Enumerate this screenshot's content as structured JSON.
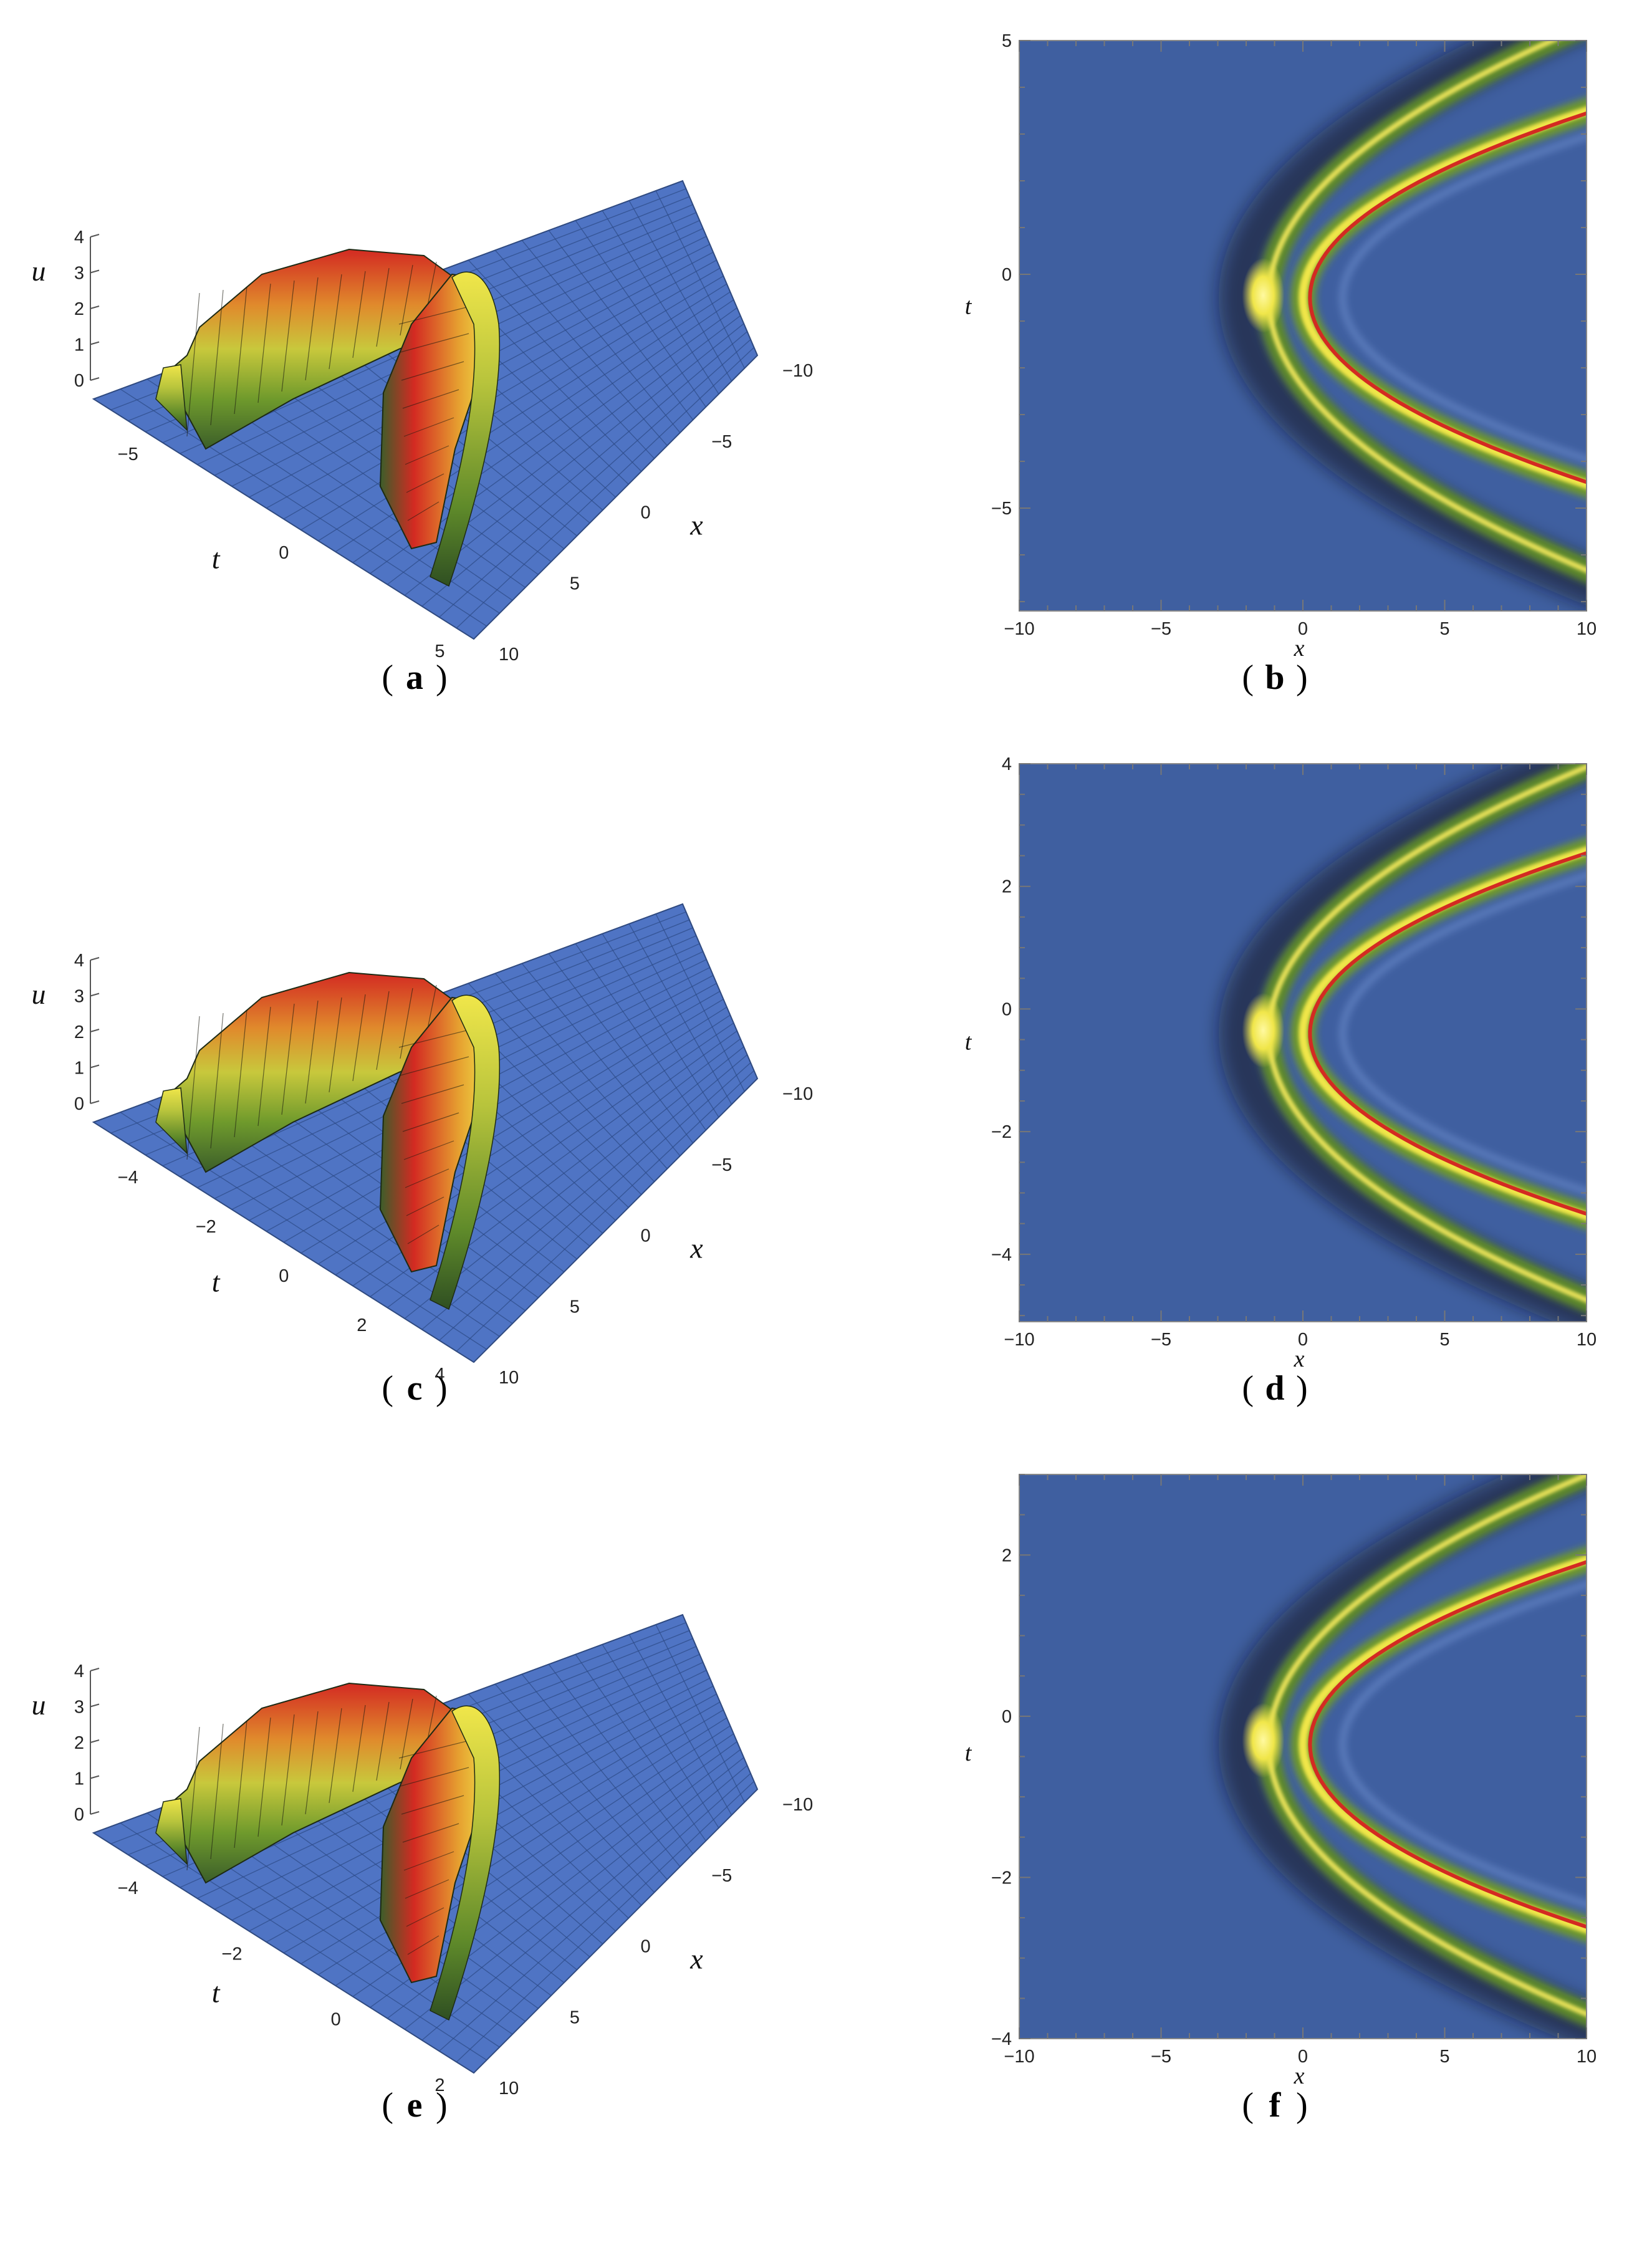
{
  "colors": {
    "background_blue": "#3f5fa0",
    "surface_blue": "#4f74c4",
    "surface_green": "#6f9a2c",
    "surface_yellow": "#f0e64a",
    "surface_red": "#d32a22",
    "frame": "#888888"
  },
  "chart_data": [
    {
      "panel": "a",
      "type": "surface3d",
      "zlabel": "u",
      "xlabel": "x",
      "ylabel": "t",
      "z_ticks": [
        "4",
        "3",
        "2",
        "1",
        "0"
      ],
      "x_ticks": [
        "−10",
        "−5",
        "0",
        "5",
        "10"
      ],
      "t_ticks": [
        "−5",
        "0",
        "5"
      ],
      "xlim": [
        -10,
        10
      ],
      "tlim": [
        -7,
        5
      ],
      "zlim": [
        0,
        4
      ]
    },
    {
      "panel": "b",
      "type": "density",
      "xlabel": "x",
      "ylabel": "t",
      "xlim": [
        -10,
        10
      ],
      "ylim": [
        -7.2,
        5
      ],
      "x_ticks": [
        -10,
        -5,
        0,
        5,
        10
      ],
      "y_ticks": [
        5,
        0,
        -5
      ],
      "x_tick_labels": [
        "−10",
        "−5",
        "0",
        "5",
        "10"
      ],
      "y_tick_labels": [
        "5",
        "0",
        "−5"
      ],
      "vertex_x": -1,
      "vertex_t": -0.5
    },
    {
      "panel": "c",
      "type": "surface3d",
      "zlabel": "u",
      "xlabel": "x",
      "ylabel": "t",
      "z_ticks": [
        "4",
        "3",
        "2",
        "1",
        "0"
      ],
      "x_ticks": [
        "−10",
        "−5",
        "0",
        "5",
        "10"
      ],
      "t_ticks": [
        "−4",
        "−2",
        "0",
        "2",
        "4"
      ],
      "xlim": [
        -10,
        10
      ],
      "tlim": [
        -5,
        4
      ],
      "zlim": [
        0,
        4
      ]
    },
    {
      "panel": "d",
      "type": "density",
      "xlabel": "x",
      "ylabel": "t",
      "xlim": [
        -10,
        10
      ],
      "ylim": [
        -5.1,
        4
      ],
      "x_ticks": [
        -10,
        -5,
        0,
        5,
        10
      ],
      "y_ticks": [
        4,
        2,
        0,
        -2,
        -4
      ],
      "x_tick_labels": [
        "−10",
        "−5",
        "0",
        "5",
        "10"
      ],
      "y_tick_labels": [
        "4",
        "2",
        "0",
        "−2",
        "−4"
      ],
      "vertex_x": -1,
      "vertex_t": -0.4
    },
    {
      "panel": "e",
      "type": "surface3d",
      "zlabel": "u",
      "xlabel": "x",
      "ylabel": "t",
      "z_ticks": [
        "4",
        "3",
        "2",
        "1",
        "0"
      ],
      "x_ticks": [
        "−10",
        "−5",
        "0",
        "5",
        "10"
      ],
      "t_ticks": [
        "−4",
        "−2",
        "0",
        "2"
      ],
      "xlim": [
        -10,
        10
      ],
      "tlim": [
        -4.5,
        3
      ],
      "zlim": [
        0,
        4
      ]
    },
    {
      "panel": "f",
      "type": "density",
      "xlabel": "x",
      "ylabel": "t",
      "xlim": [
        -10,
        10
      ],
      "ylim": [
        -4,
        3
      ],
      "x_ticks": [
        -10,
        -5,
        0,
        5,
        10
      ],
      "y_ticks": [
        2,
        0,
        -2,
        -4
      ],
      "x_tick_labels": [
        "−10",
        "−5",
        "0",
        "5",
        "10"
      ],
      "y_tick_labels": [
        "2",
        "0",
        "−2",
        "−4"
      ],
      "vertex_x": -1,
      "vertex_t": -0.35
    }
  ],
  "captions": {
    "open": "(",
    "close": ")",
    "a": "a",
    "b": "b",
    "c": "c",
    "d": "d",
    "e": "e",
    "f": "f"
  }
}
